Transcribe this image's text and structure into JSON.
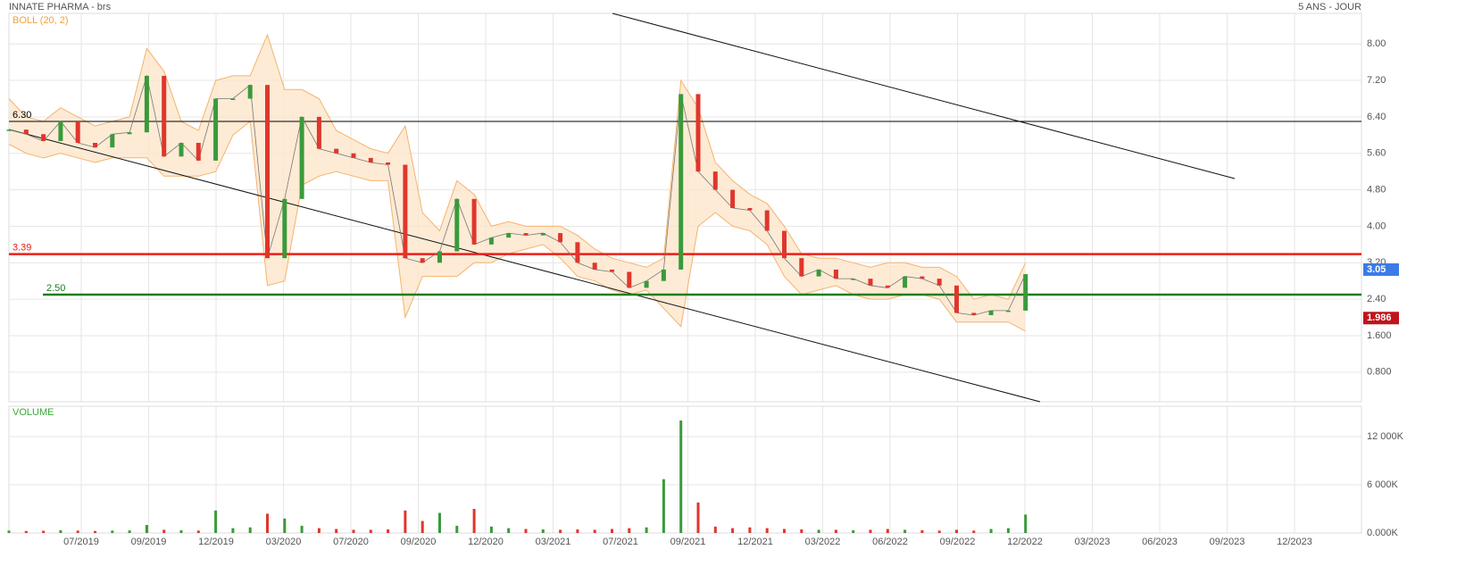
{
  "chart_data": [
    {
      "type": "line",
      "title": "INNATE PHARMA - brs",
      "subtitle": "5 ANS - JOUR",
      "band_label": "BOLL (20, 2)",
      "close": [
        6.12,
        6.02,
        5.87,
        6.3,
        5.83,
        5.73,
        6.02,
        6.06,
        7.3,
        5.53,
        5.83,
        5.44,
        6.8,
        6.8,
        7.1,
        3.3,
        4.6,
        6.4,
        5.7,
        5.6,
        5.5,
        5.4,
        5.35,
        3.3,
        3.2,
        3.45,
        4.6,
        3.6,
        3.75,
        3.85,
        3.8,
        3.85,
        3.65,
        3.2,
        3.05,
        3.0,
        2.65,
        2.8,
        3.05,
        6.9,
        5.2,
        4.8,
        4.4,
        4.35,
        3.9,
        3.3,
        2.9,
        3.05,
        2.85,
        2.85,
        2.7,
        2.65,
        2.9,
        2.85,
        2.7,
        2.1,
        2.05,
        2.15,
        2.15,
        2.95
      ],
      "upper": [
        6.8,
        6.4,
        6.3,
        6.6,
        6.4,
        6.2,
        6.3,
        6.4,
        7.9,
        7.4,
        6.3,
        6.1,
        7.2,
        7.3,
        7.3,
        8.2,
        7.0,
        7.0,
        6.8,
        6.1,
        5.9,
        5.7,
        5.6,
        6.2,
        4.3,
        3.9,
        5.0,
        4.7,
        4.0,
        4.1,
        4.0,
        4.0,
        4.0,
        3.8,
        3.5,
        3.3,
        3.2,
        3.1,
        3.3,
        7.2,
        6.6,
        5.4,
        5.0,
        4.7,
        4.5,
        4.0,
        3.4,
        3.3,
        3.3,
        3.2,
        3.1,
        3.2,
        3.2,
        3.1,
        3.1,
        2.9,
        2.4,
        2.5,
        2.4,
        3.2
      ],
      "lower": [
        5.8,
        5.6,
        5.5,
        5.6,
        5.5,
        5.4,
        5.5,
        5.5,
        5.5,
        5.1,
        5.1,
        5.1,
        5.2,
        6.0,
        6.3,
        2.7,
        2.8,
        4.9,
        5.1,
        5.2,
        5.1,
        5.0,
        5.0,
        2.0,
        2.9,
        2.9,
        2.9,
        3.2,
        3.2,
        3.4,
        3.5,
        3.6,
        3.3,
        2.9,
        2.8,
        2.6,
        2.5,
        2.6,
        2.2,
        1.8,
        4.0,
        4.3,
        4.0,
        3.9,
        3.6,
        2.9,
        2.5,
        2.6,
        2.7,
        2.5,
        2.4,
        2.4,
        2.5,
        2.5,
        2.4,
        1.9,
        1.9,
        1.9,
        1.9,
        1.7
      ],
      "up_color": "#3a9a3a",
      "down_color": "#e0362c",
      "band_color": "#f5b36b",
      "ylim": [
        0.15,
        8.67
      ],
      "yticks": [
        {
          "value": 8,
          "label": "8.00"
        },
        {
          "value": 7.2,
          "label": "7.20"
        },
        {
          "value": 6.4,
          "label": "6.40"
        },
        {
          "value": 5.6,
          "label": "5.60"
        },
        {
          "value": 4.8,
          "label": "4.80"
        },
        {
          "value": 4,
          "label": "4.00"
        },
        {
          "value": 3.2,
          "label": "3.20"
        },
        {
          "value": 2.4,
          "label": "2.40"
        },
        {
          "value": 1.6,
          "label": "1.600"
        },
        {
          "value": 0.8,
          "label": "0.800"
        }
      ],
      "levels": [
        {
          "value": 6.3,
          "label": "6.30",
          "color": "#000000"
        },
        {
          "value": 3.39,
          "label": "3.39",
          "color": "#e8201a"
        },
        {
          "value": 2.5,
          "label": "2.50",
          "color": "#1e7e1e"
        }
      ],
      "price_tags": [
        {
          "value": 3.05,
          "color": "#3b7be8"
        },
        {
          "value": 1.986,
          "color": "#c0141c"
        }
      ],
      "grid": true
    },
    {
      "type": "bar",
      "title": "VOLUME",
      "values": [
        300,
        250,
        280,
        350,
        300,
        250,
        300,
        320,
        1000,
        400,
        350,
        300,
        2800,
        600,
        700,
        2400,
        1800,
        900,
        600,
        500,
        400,
        400,
        450,
        2800,
        1500,
        2500,
        900,
        3000,
        800,
        600,
        500,
        450,
        400,
        450,
        400,
        500,
        600,
        700,
        6700,
        14000,
        3800,
        800,
        600,
        700,
        600,
        500,
        450,
        400,
        400,
        350,
        400,
        500,
        400,
        350,
        300,
        400,
        300,
        500,
        600,
        2300
      ],
      "ylim": [
        0,
        15780
      ],
      "yticks": [
        {
          "value": 12000,
          "label": "12 000K"
        },
        {
          "value": 6000,
          "label": "6 000K"
        },
        {
          "value": 0,
          "label": "0.000K"
        }
      ],
      "x_tick_labels": [
        "07/2019",
        "09/2019",
        "12/2019",
        "03/2020",
        "07/2020",
        "09/2020",
        "12/2020",
        "03/2021",
        "07/2021",
        "09/2021",
        "12/2021",
        "03/2022",
        "06/2022",
        "09/2022",
        "12/2022",
        "03/2023",
        "06/2023",
        "09/2023",
        "12/2023"
      ],
      "grid": true
    }
  ]
}
